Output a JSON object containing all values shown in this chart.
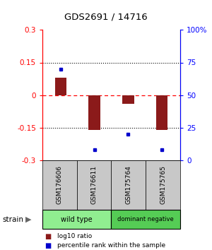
{
  "title": "GDS2691 / 14716",
  "samples": [
    "GSM176606",
    "GSM176611",
    "GSM175764",
    "GSM175765"
  ],
  "log10_ratio": [
    0.08,
    -0.16,
    -0.04,
    -0.16
  ],
  "percentile_rank": [
    70,
    8,
    20,
    8
  ],
  "groups": [
    {
      "label": "wild type",
      "color": "#90EE90",
      "samples": [
        0,
        1
      ]
    },
    {
      "label": "dominant negative",
      "color": "#55CC55",
      "samples": [
        2,
        3
      ]
    }
  ],
  "ylim": [
    -0.3,
    0.3
  ],
  "y2lim": [
    0,
    100
  ],
  "yticks": [
    -0.3,
    -0.15,
    0,
    0.15,
    0.3
  ],
  "y2ticks": [
    0,
    25,
    50,
    75,
    100
  ],
  "ytick_labels": [
    "-0.3",
    "-0.15",
    "0",
    "0.15",
    "0.3"
  ],
  "y2tick_labels": [
    "0",
    "25",
    "50",
    "75",
    "100%"
  ],
  "bar_color": "#8B1A1A",
  "dot_color": "#0000CC",
  "sample_box_color": "#C8C8C8",
  "legend_items": [
    {
      "color": "#8B1A1A",
      "label": "log10 ratio"
    },
    {
      "color": "#0000CC",
      "label": "percentile rank within the sample"
    }
  ],
  "strain_label": "strain",
  "bar_width": 0.35
}
